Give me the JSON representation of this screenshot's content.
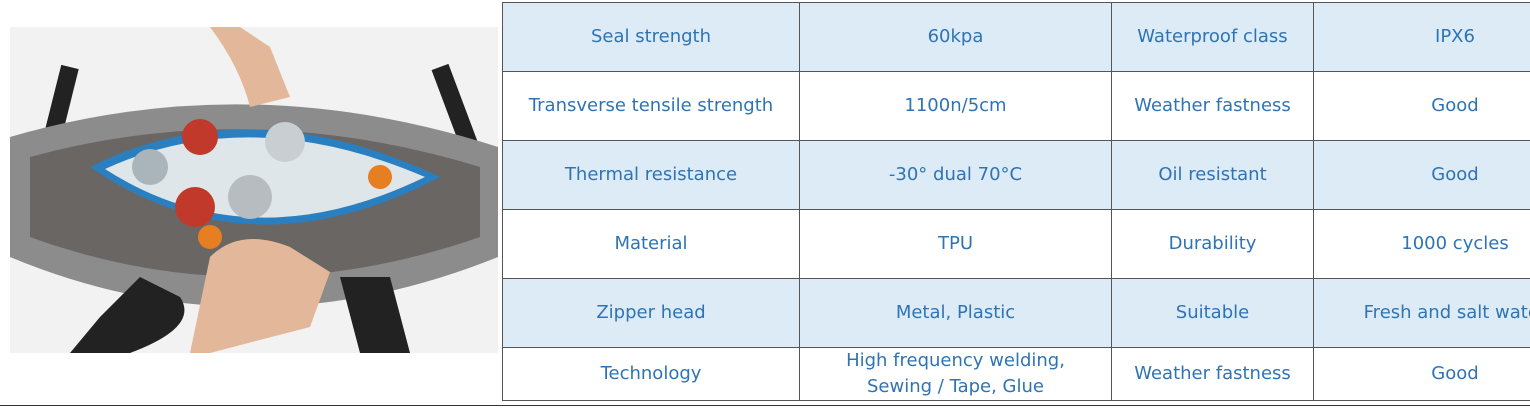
{
  "table": {
    "rows": [
      [
        "Seal strength",
        "60kpa",
        "Waterproof class",
        "IPX6"
      ],
      [
        "Transverse tensile strength",
        "1100n/5cm",
        "Weather fastness",
        "Good"
      ],
      [
        "Thermal resistance",
        "-30° dual 70°C",
        "Oil resistant",
        "Good"
      ],
      [
        "Material",
        "TPU",
        "Durability",
        "1000 cycles"
      ],
      [
        "Zipper head",
        "Metal, Plastic",
        "Suitable",
        "Fresh and salt water"
      ],
      [
        "Technology",
        "High frequency welding, Sewing / Tape, Glue",
        "Weather fastness",
        "Good"
      ]
    ]
  }
}
